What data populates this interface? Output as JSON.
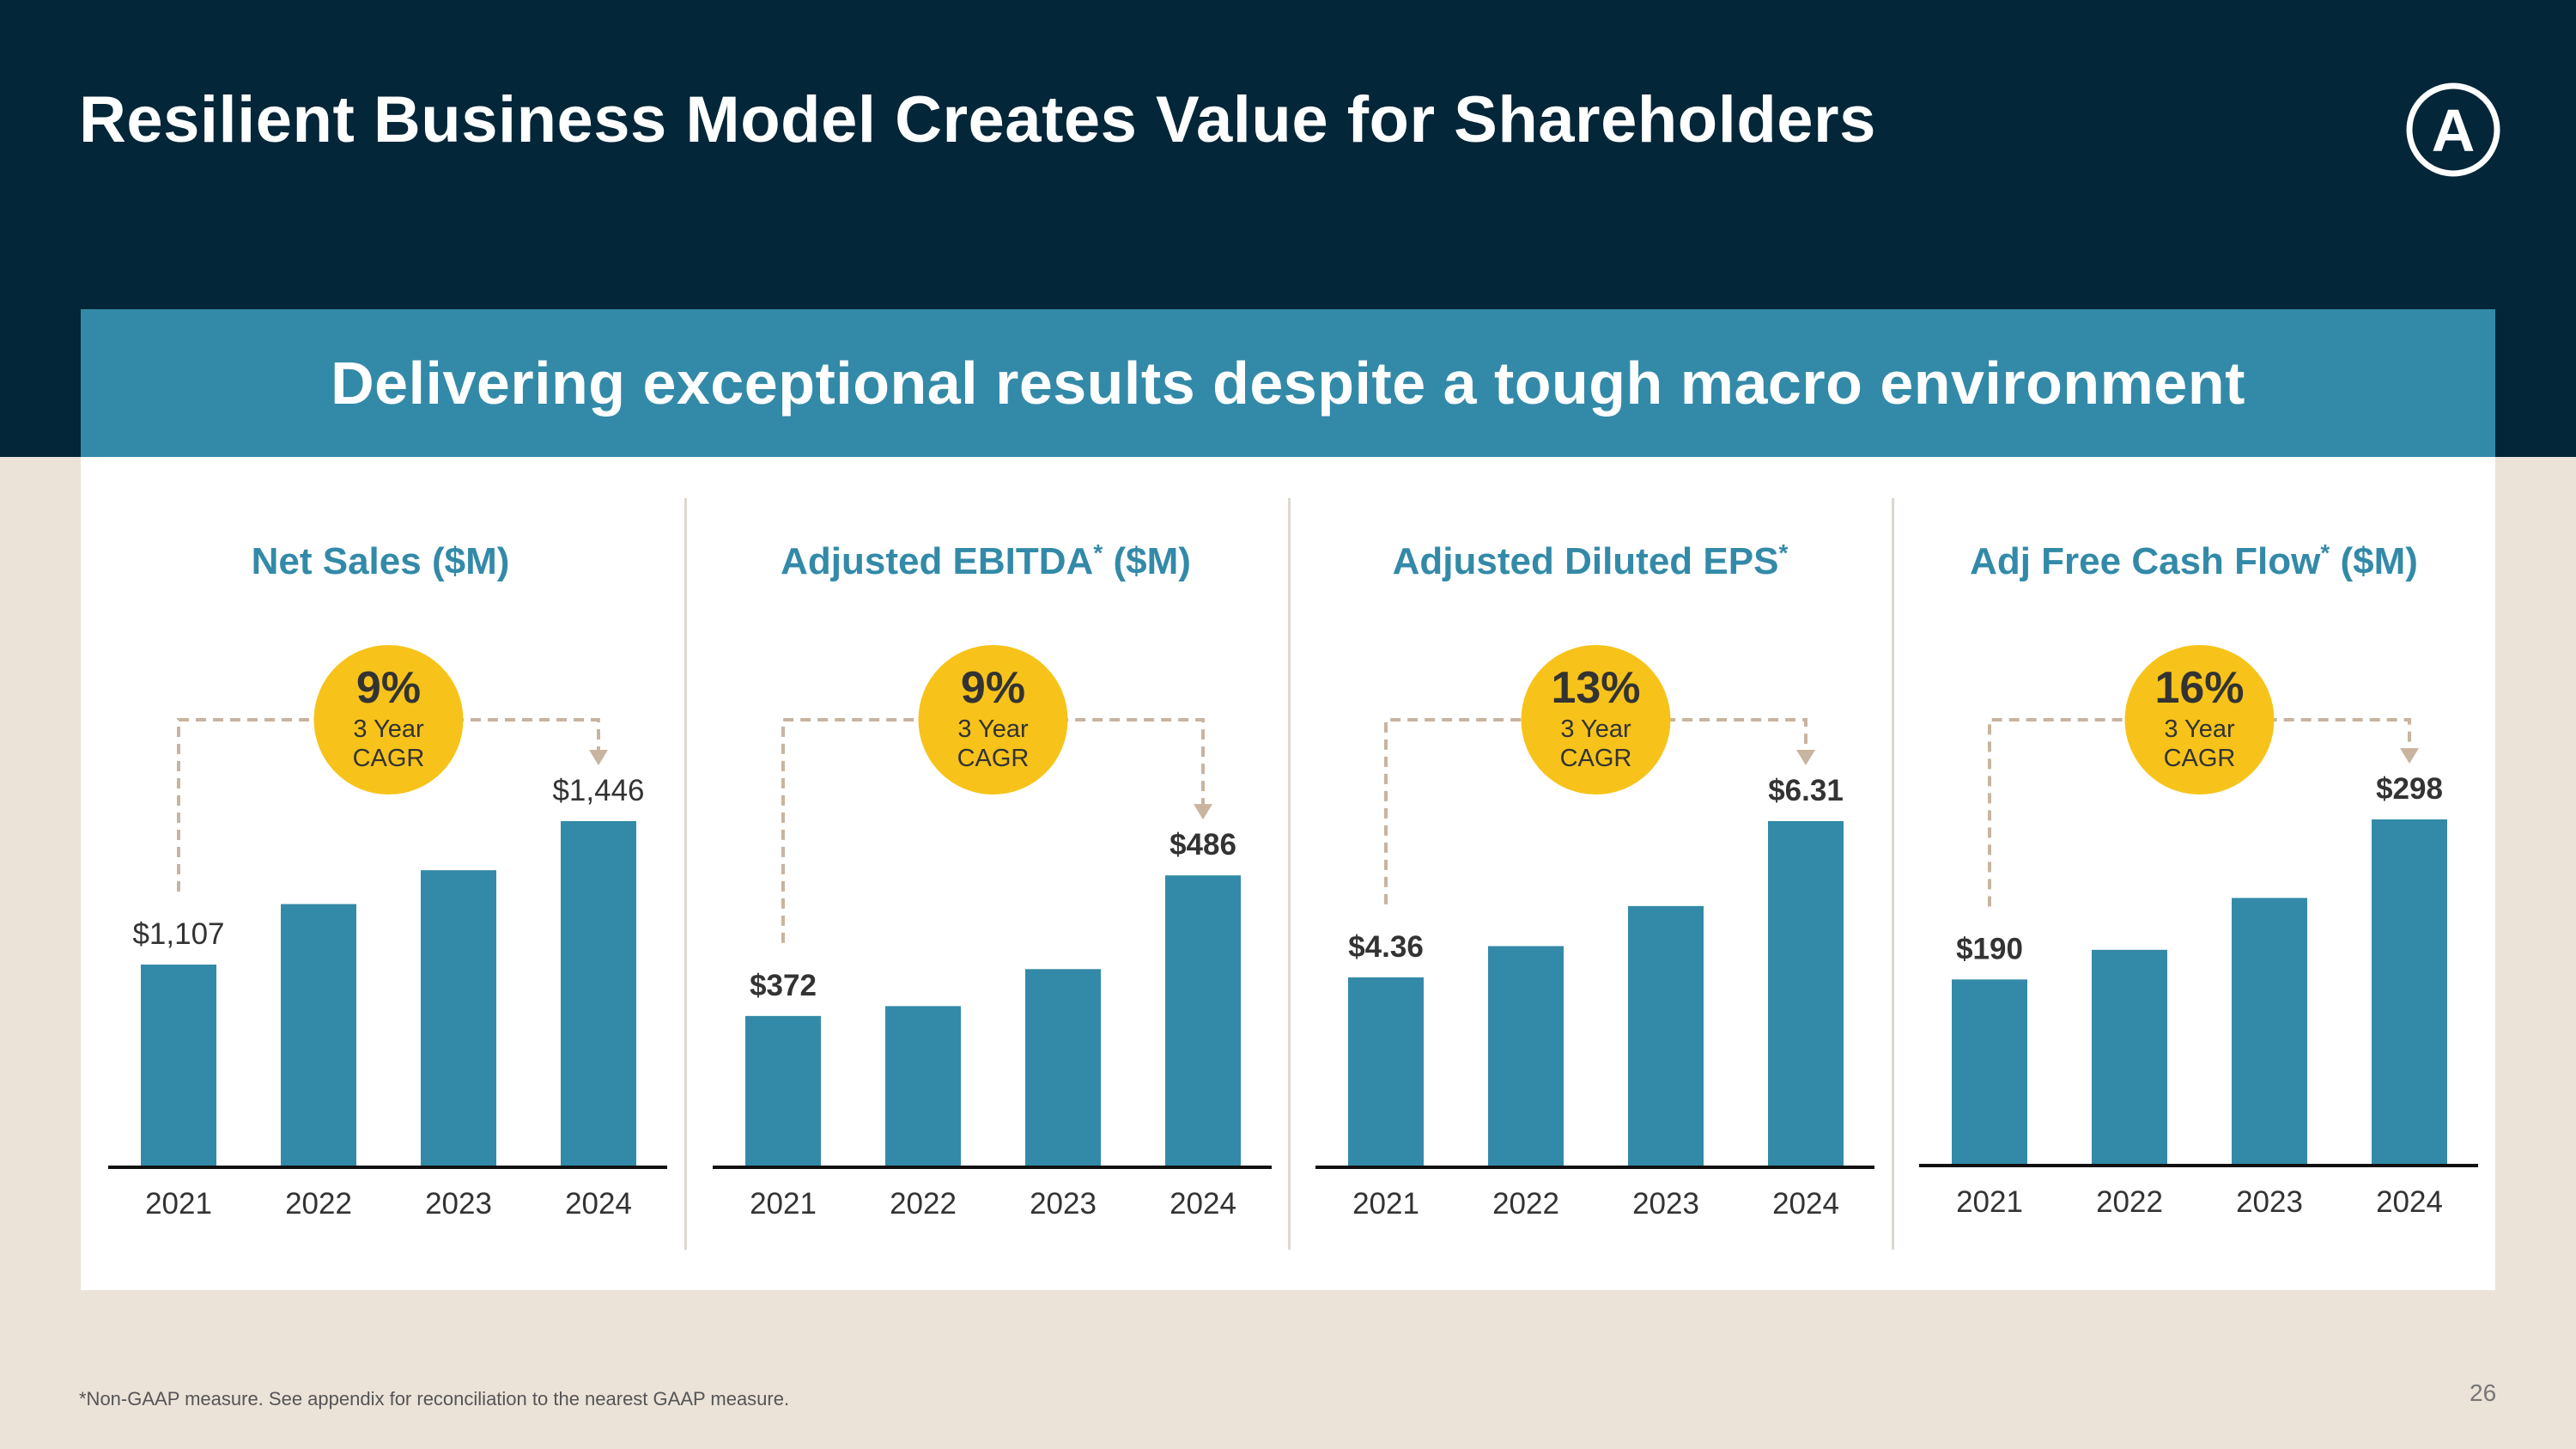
{
  "slide": {
    "title": "Resilient Business Model Creates Value for Shareholders",
    "banner": "Delivering exceptional results despite a tough macro environment",
    "footnote": "*Non-GAAP measure. See  appendix for reconciliation to the nearest GAAP measure.",
    "page_number": "26",
    "logo_letter": "A"
  },
  "colors": {
    "navy": "#032638",
    "teal": "#338aa8",
    "gold": "#f7c31a",
    "dash": "#c8b49f",
    "text": "#333333"
  },
  "chart_data": [
    {
      "type": "bar",
      "title": "Net Sales ($M)",
      "title_parts": [
        "Net Sales ($M)",
        "",
        ""
      ],
      "categories": [
        "2021",
        "2022",
        "2023",
        "2024"
      ],
      "values": [
        1107,
        1250,
        1330,
        1446
      ],
      "labels": [
        "$1,107",
        "",
        "",
        "$1,446"
      ],
      "label_weight": "normal",
      "cagr": {
        "value": "9%",
        "line1": "3 Year",
        "line2": "CAGR"
      },
      "ylim": [
        630,
        1446
      ]
    },
    {
      "type": "bar",
      "title": "Adjusted EBITDA* ($M)",
      "title_parts": [
        "Adjusted EBITDA",
        "*",
        " ($M)"
      ],
      "categories": [
        "2021",
        "2022",
        "2023",
        "2024"
      ],
      "values": [
        372,
        380,
        410,
        486
      ],
      "labels": [
        "$372",
        "",
        "",
        "$486"
      ],
      "label_weight": "bold",
      "cagr": {
        "value": "9%",
        "line1": "3 Year",
        "line2": "CAGR"
      },
      "ylim": [
        250,
        530
      ]
    },
    {
      "type": "bar",
      "title": "Adjusted Diluted EPS*",
      "title_parts": [
        "Adjusted Diluted EPS",
        "*",
        ""
      ],
      "categories": [
        "2021",
        "2022",
        "2023",
        "2024"
      ],
      "values": [
        4.36,
        4.75,
        5.25,
        6.31
      ],
      "labels": [
        "$4.36",
        "",
        "",
        "$6.31"
      ],
      "label_weight": "bold",
      "cagr": {
        "value": "13%",
        "line1": "3 Year",
        "line2": "CAGR"
      },
      "ylim": [
        2.0,
        6.31
      ]
    },
    {
      "type": "bar",
      "title": "Adj Free Cash Flow* ($M)",
      "title_parts": [
        "Adj Free Cash Flow",
        "*",
        " ($M)"
      ],
      "categories": [
        "2021",
        "2022",
        "2023",
        "2024"
      ],
      "values": [
        190,
        210,
        245,
        298
      ],
      "labels": [
        "$190",
        "",
        "",
        "$298"
      ],
      "label_weight": "bold",
      "cagr": {
        "value": "16%",
        "line1": "3 Year",
        "line2": "CAGR"
      },
      "ylim": [
        65,
        298
      ]
    }
  ]
}
